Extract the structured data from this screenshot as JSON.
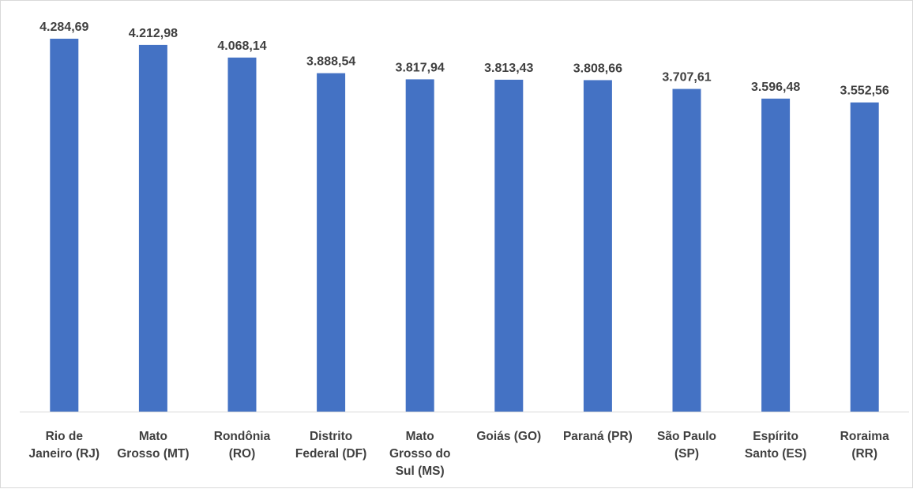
{
  "chart_data": {
    "type": "bar",
    "categories": [
      [
        "Rio de",
        "Janeiro (RJ)"
      ],
      [
        "Mato",
        "Grosso (MT)"
      ],
      [
        "Rondônia",
        "(RO)"
      ],
      [
        "Distrito",
        "Federal (DF)"
      ],
      [
        "Mato",
        "Grosso do",
        "Sul (MS)"
      ],
      [
        "Goiás (GO)"
      ],
      [
        "Paraná (PR)"
      ],
      [
        "São Paulo",
        "(SP)"
      ],
      [
        "Espírito",
        "Santo (ES)"
      ],
      [
        "Roraima",
        "(RR)"
      ]
    ],
    "values": [
      4284.69,
      4212.98,
      4068.14,
      3888.54,
      3817.94,
      3813.43,
      3808.66,
      3707.61,
      3596.48,
      3552.56
    ],
    "value_labels": [
      "4.284,69",
      "4.212,98",
      "4.068,14",
      "3.888,54",
      "3.817,94",
      "3.813,43",
      "3.808,66",
      "3.707,61",
      "3.596,48",
      "3.552,56"
    ],
    "title": "",
    "xlabel": "",
    "ylabel": "",
    "ylim": [
      0,
      4500
    ],
    "grid": false,
    "legend": "none",
    "bar_color": "#4472C4",
    "axis_color": "#d9d9d9",
    "label_color": "#404040"
  }
}
